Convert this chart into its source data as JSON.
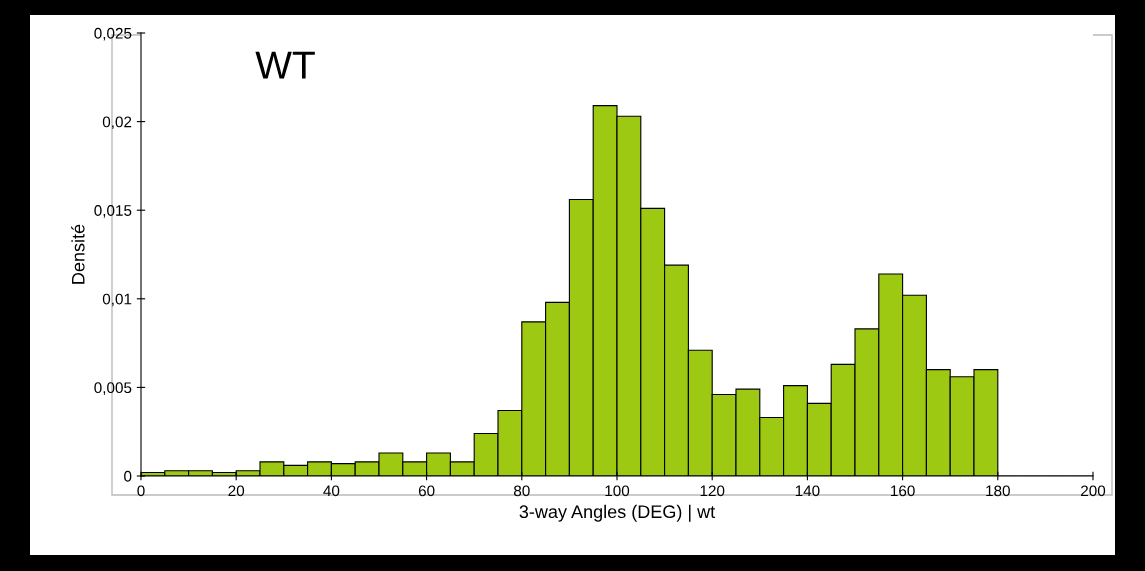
{
  "chart_data": {
    "type": "histogram",
    "xlabel": "3-way Angles (DEG) | wt",
    "ylabel": "Densité",
    "annotations": [
      "WT"
    ],
    "color": "#9dc913",
    "bins": [
      0,
      5,
      10,
      15,
      20,
      25,
      30,
      35,
      40,
      45,
      50,
      55,
      60,
      65,
      70,
      75,
      80,
      85,
      90,
      95,
      100,
      105,
      110,
      115,
      120,
      125,
      130,
      135,
      140,
      145,
      150,
      155,
      160,
      165,
      170,
      175,
      180,
      185,
      190,
      195,
      200
    ],
    "values": [
      0.0002,
      0.0003,
      0.0003,
      0.0002,
      0.0003,
      0.0008,
      0.0006,
      0.0008,
      0.0007,
      0.0008,
      0.0013,
      0.0008,
      0.0013,
      0.0008,
      0.0024,
      0.0037,
      0.0087,
      0.0098,
      0.0156,
      0.0209,
      0.0203,
      0.0151,
      0.0119,
      0.0071,
      0.0046,
      0.0049,
      0.0033,
      0.0051,
      0.0041,
      0.0063,
      0.0083,
      0.0114,
      0.0102,
      0.006,
      0.0056,
      0.006,
      0,
      0,
      0,
      0
    ],
    "xlim": [
      0,
      200
    ],
    "xticks": [
      0,
      20,
      40,
      60,
      80,
      100,
      120,
      140,
      160,
      180,
      200
    ],
    "ylim": [
      0,
      0.025
    ],
    "yticks": [
      0,
      {
        "value": 0.005,
        "label": "0,005"
      },
      {
        "value": 0.01,
        "label": "0,01"
      },
      {
        "value": 0.015,
        "label": "0,015"
      },
      {
        "value": 0.02,
        "label": "0,02"
      },
      {
        "value": 0.025,
        "label": "0,025"
      }
    ],
    "grid": false,
    "legend": false
  }
}
